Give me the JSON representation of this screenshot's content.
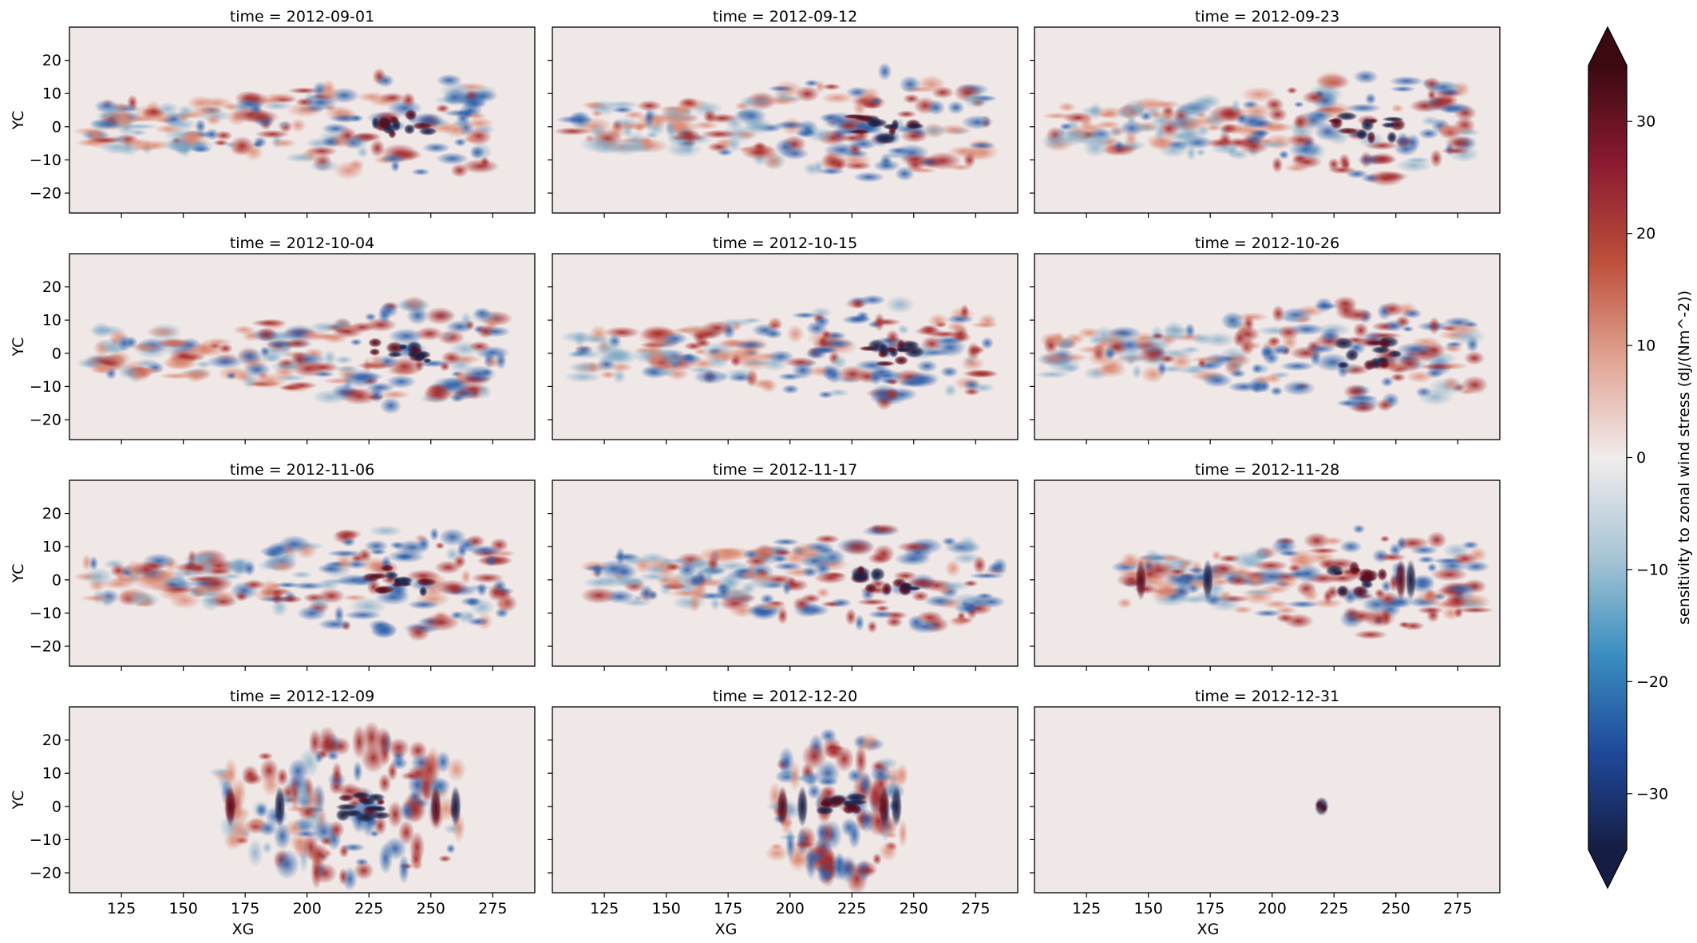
{
  "chart_data": {
    "type": "heatmap",
    "layout": {
      "rows": 4,
      "cols": 3
    },
    "panels": [
      {
        "title": "time = 2012-09-01"
      },
      {
        "title": "time = 2012-09-12"
      },
      {
        "title": "time = 2012-09-23"
      },
      {
        "title": "time = 2012-10-04"
      },
      {
        "title": "time = 2012-10-15"
      },
      {
        "title": "time = 2012-10-26"
      },
      {
        "title": "time = 2012-11-06"
      },
      {
        "title": "time = 2012-11-17"
      },
      {
        "title": "time = 2012-11-28"
      },
      {
        "title": "time = 2012-12-09"
      },
      {
        "title": "time = 2012-12-20"
      },
      {
        "title": "time = 2012-12-31"
      }
    ],
    "xlabel": "XG",
    "ylabel": "YC",
    "xlim": [
      104,
      292
    ],
    "ylim": [
      -26,
      30
    ],
    "xticks": [
      125,
      150,
      175,
      200,
      225,
      250,
      275
    ],
    "yticks": [
      20,
      10,
      0,
      -10,
      -20
    ],
    "colorbar": {
      "label": "sensitivity to zonal wind stress (dJ/(Nm^-2))",
      "vmin": -35,
      "vmax": 35,
      "extend": "both",
      "ticks": [
        30,
        20,
        10,
        0,
        -10,
        -20,
        -30
      ],
      "colormap": "balance",
      "colors": [
        "#151d44",
        "#1f4a9b",
        "#3a8fc0",
        "#a9c6d5",
        "#f1ecec",
        "#e0a493",
        "#bd4f3a",
        "#8b1a31",
        "#3c0911"
      ]
    }
  }
}
